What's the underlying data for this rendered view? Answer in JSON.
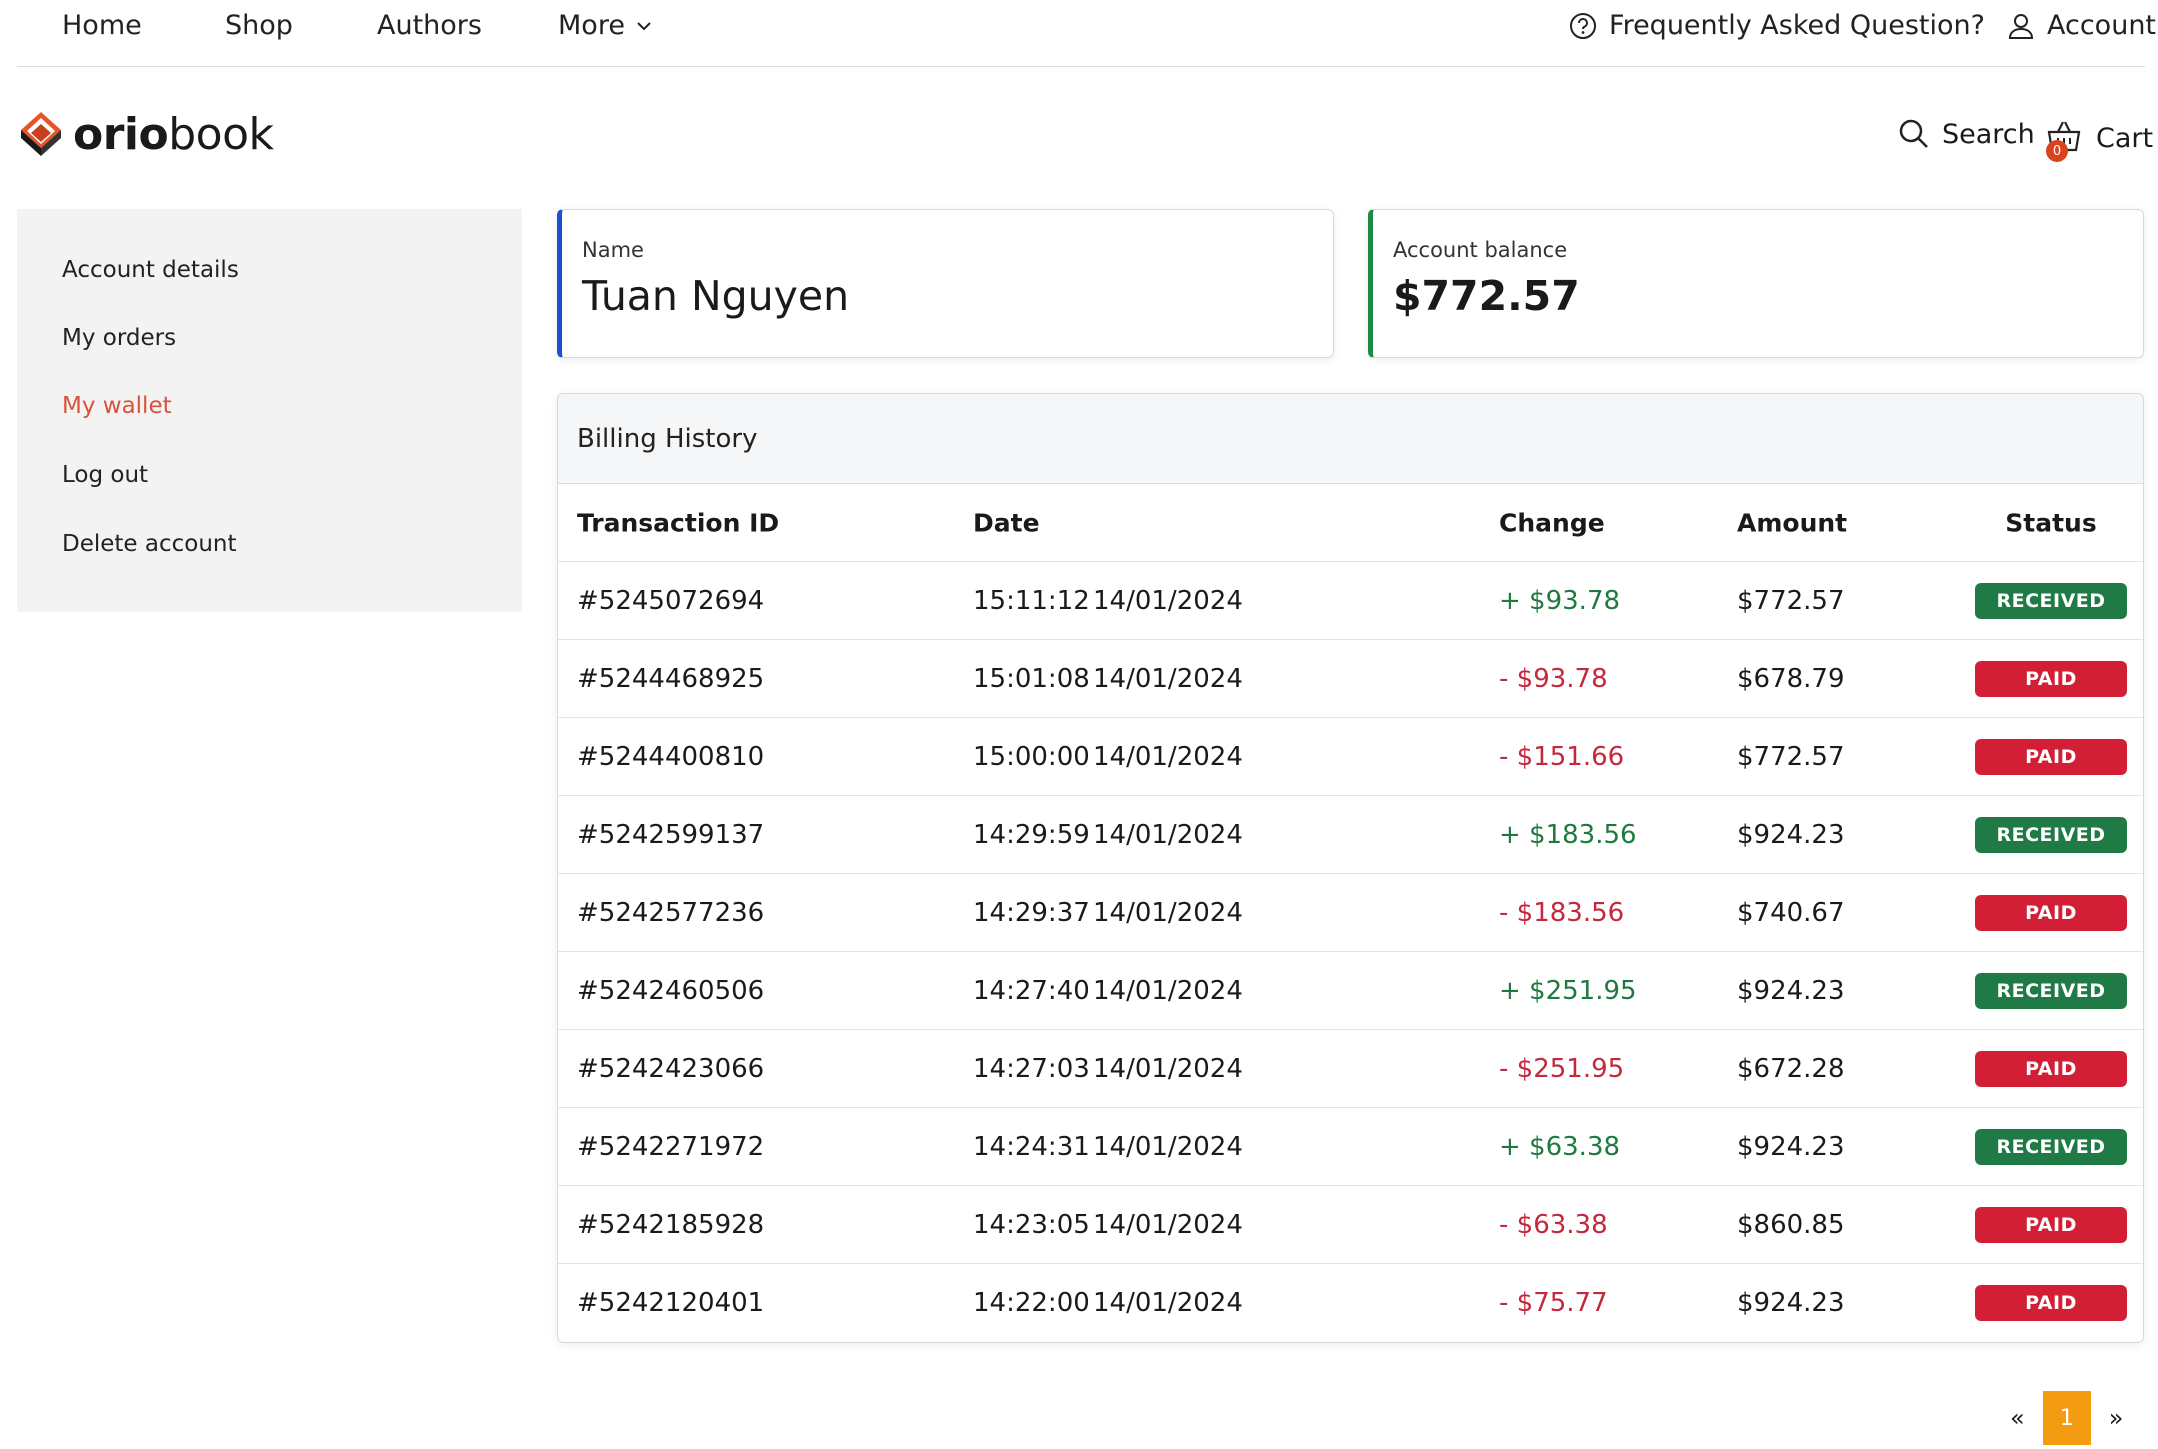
{
  "topnav": {
    "home": "Home",
    "shop": "Shop",
    "authors": "Authors",
    "more": "More",
    "faq": "Frequently Asked Question?",
    "account": "Account"
  },
  "brand": {
    "bold": "orio",
    "light": "book"
  },
  "header": {
    "search": "Search",
    "cart": "Cart",
    "cart_count": "0"
  },
  "sidebar": {
    "items": [
      {
        "label": "Account details"
      },
      {
        "label": "My orders"
      },
      {
        "label": "My wallet",
        "active": true
      },
      {
        "label": "Log out"
      },
      {
        "label": "Delete account"
      }
    ]
  },
  "profile": {
    "name_label": "Name",
    "name": "Tuan Nguyen",
    "balance_label": "Account balance",
    "balance": "$772.57"
  },
  "billing": {
    "title": "Billing History",
    "columns": {
      "id": "Transaction ID",
      "date": "Date",
      "change": "Change",
      "amount": "Amount",
      "status": "Status"
    },
    "rows": [
      {
        "id": "#5245072694",
        "time": "15:11:12",
        "date": "14/01/2024",
        "change": "+ $93.78",
        "type": "pos",
        "amount": "$772.57",
        "status": "RECEIVED"
      },
      {
        "id": "#5244468925",
        "time": "15:01:08",
        "date": "14/01/2024",
        "change": "- $93.78",
        "type": "neg",
        "amount": "$678.79",
        "status": "PAID"
      },
      {
        "id": "#5244400810",
        "time": "15:00:00",
        "date": "14/01/2024",
        "change": "- $151.66",
        "type": "neg",
        "amount": "$772.57",
        "status": "PAID"
      },
      {
        "id": "#5242599137",
        "time": "14:29:59",
        "date": "14/01/2024",
        "change": "+ $183.56",
        "type": "pos",
        "amount": "$924.23",
        "status": "RECEIVED"
      },
      {
        "id": "#5242577236",
        "time": "14:29:37",
        "date": "14/01/2024",
        "change": "- $183.56",
        "type": "neg",
        "amount": "$740.67",
        "status": "PAID"
      },
      {
        "id": "#5242460506",
        "time": "14:27:40",
        "date": "14/01/2024",
        "change": "+ $251.95",
        "type": "pos",
        "amount": "$924.23",
        "status": "RECEIVED"
      },
      {
        "id": "#5242423066",
        "time": "14:27:03",
        "date": "14/01/2024",
        "change": "- $251.95",
        "type": "neg",
        "amount": "$672.28",
        "status": "PAID"
      },
      {
        "id": "#5242271972",
        "time": "14:24:31",
        "date": "14/01/2024",
        "change": "+ $63.38",
        "type": "pos",
        "amount": "$924.23",
        "status": "RECEIVED"
      },
      {
        "id": "#5242185928",
        "time": "14:23:05",
        "date": "14/01/2024",
        "change": "- $63.38",
        "type": "neg",
        "amount": "$860.85",
        "status": "PAID"
      },
      {
        "id": "#5242120401",
        "time": "14:22:00",
        "date": "14/01/2024",
        "change": "- $75.77",
        "type": "neg",
        "amount": "$924.23",
        "status": "PAID"
      }
    ]
  },
  "pagination": {
    "prev": "«",
    "current": "1",
    "next": "»"
  },
  "colors": {
    "accent": "#f39c12",
    "active_link": "#d9533a",
    "received": "#1f7a45",
    "paid": "#d21f36"
  }
}
